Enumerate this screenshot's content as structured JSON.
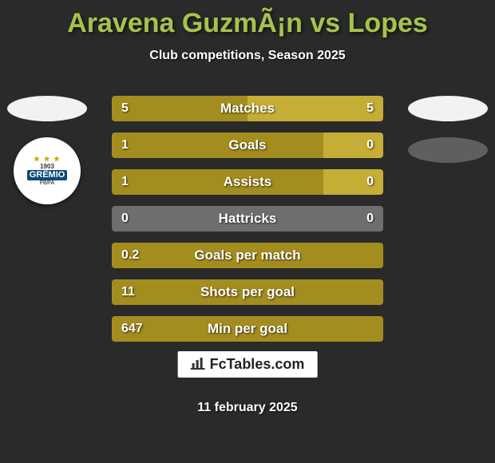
{
  "title": {
    "text": "Aravena GuzmÃ¡n vs Lopes",
    "color": "#a6c34a",
    "fontsize": 34
  },
  "subtitle": "Club competitions, Season 2025",
  "colors": {
    "left": "#a38d1f",
    "right": "#c6ad35",
    "neutral": "#6e6e6e",
    "background": "#2a2a2a",
    "text": "#ffffff"
  },
  "sides": {
    "left_flag": "chile",
    "left_badge": {
      "year": "1903",
      "name": "GRÊMIO",
      "stars": "★ ★ ★"
    },
    "right_flag": "brazil",
    "right_badge": null
  },
  "rows": [
    {
      "label": "Matches",
      "left": "5",
      "right": "5",
      "left_pct": 50,
      "right_pct": 50
    },
    {
      "label": "Goals",
      "left": "1",
      "right": "0",
      "left_pct": 78,
      "right_pct": 22
    },
    {
      "label": "Assists",
      "left": "1",
      "right": "0",
      "left_pct": 78,
      "right_pct": 22
    },
    {
      "label": "Hattricks",
      "left": "0",
      "right": "0",
      "left_pct": 0,
      "right_pct": 0,
      "neutral": true
    },
    {
      "label": "Goals per match",
      "left": "0.2",
      "right": "",
      "left_pct": 100,
      "right_pct": 0,
      "single": true
    },
    {
      "label": "Shots per goal",
      "left": "11",
      "right": "",
      "left_pct": 100,
      "right_pct": 0,
      "single": true
    },
    {
      "label": "Min per goal",
      "left": "647",
      "right": "",
      "left_pct": 100,
      "right_pct": 0,
      "single": true
    }
  ],
  "footer": "FcTables.com",
  "date": "11 february 2025"
}
